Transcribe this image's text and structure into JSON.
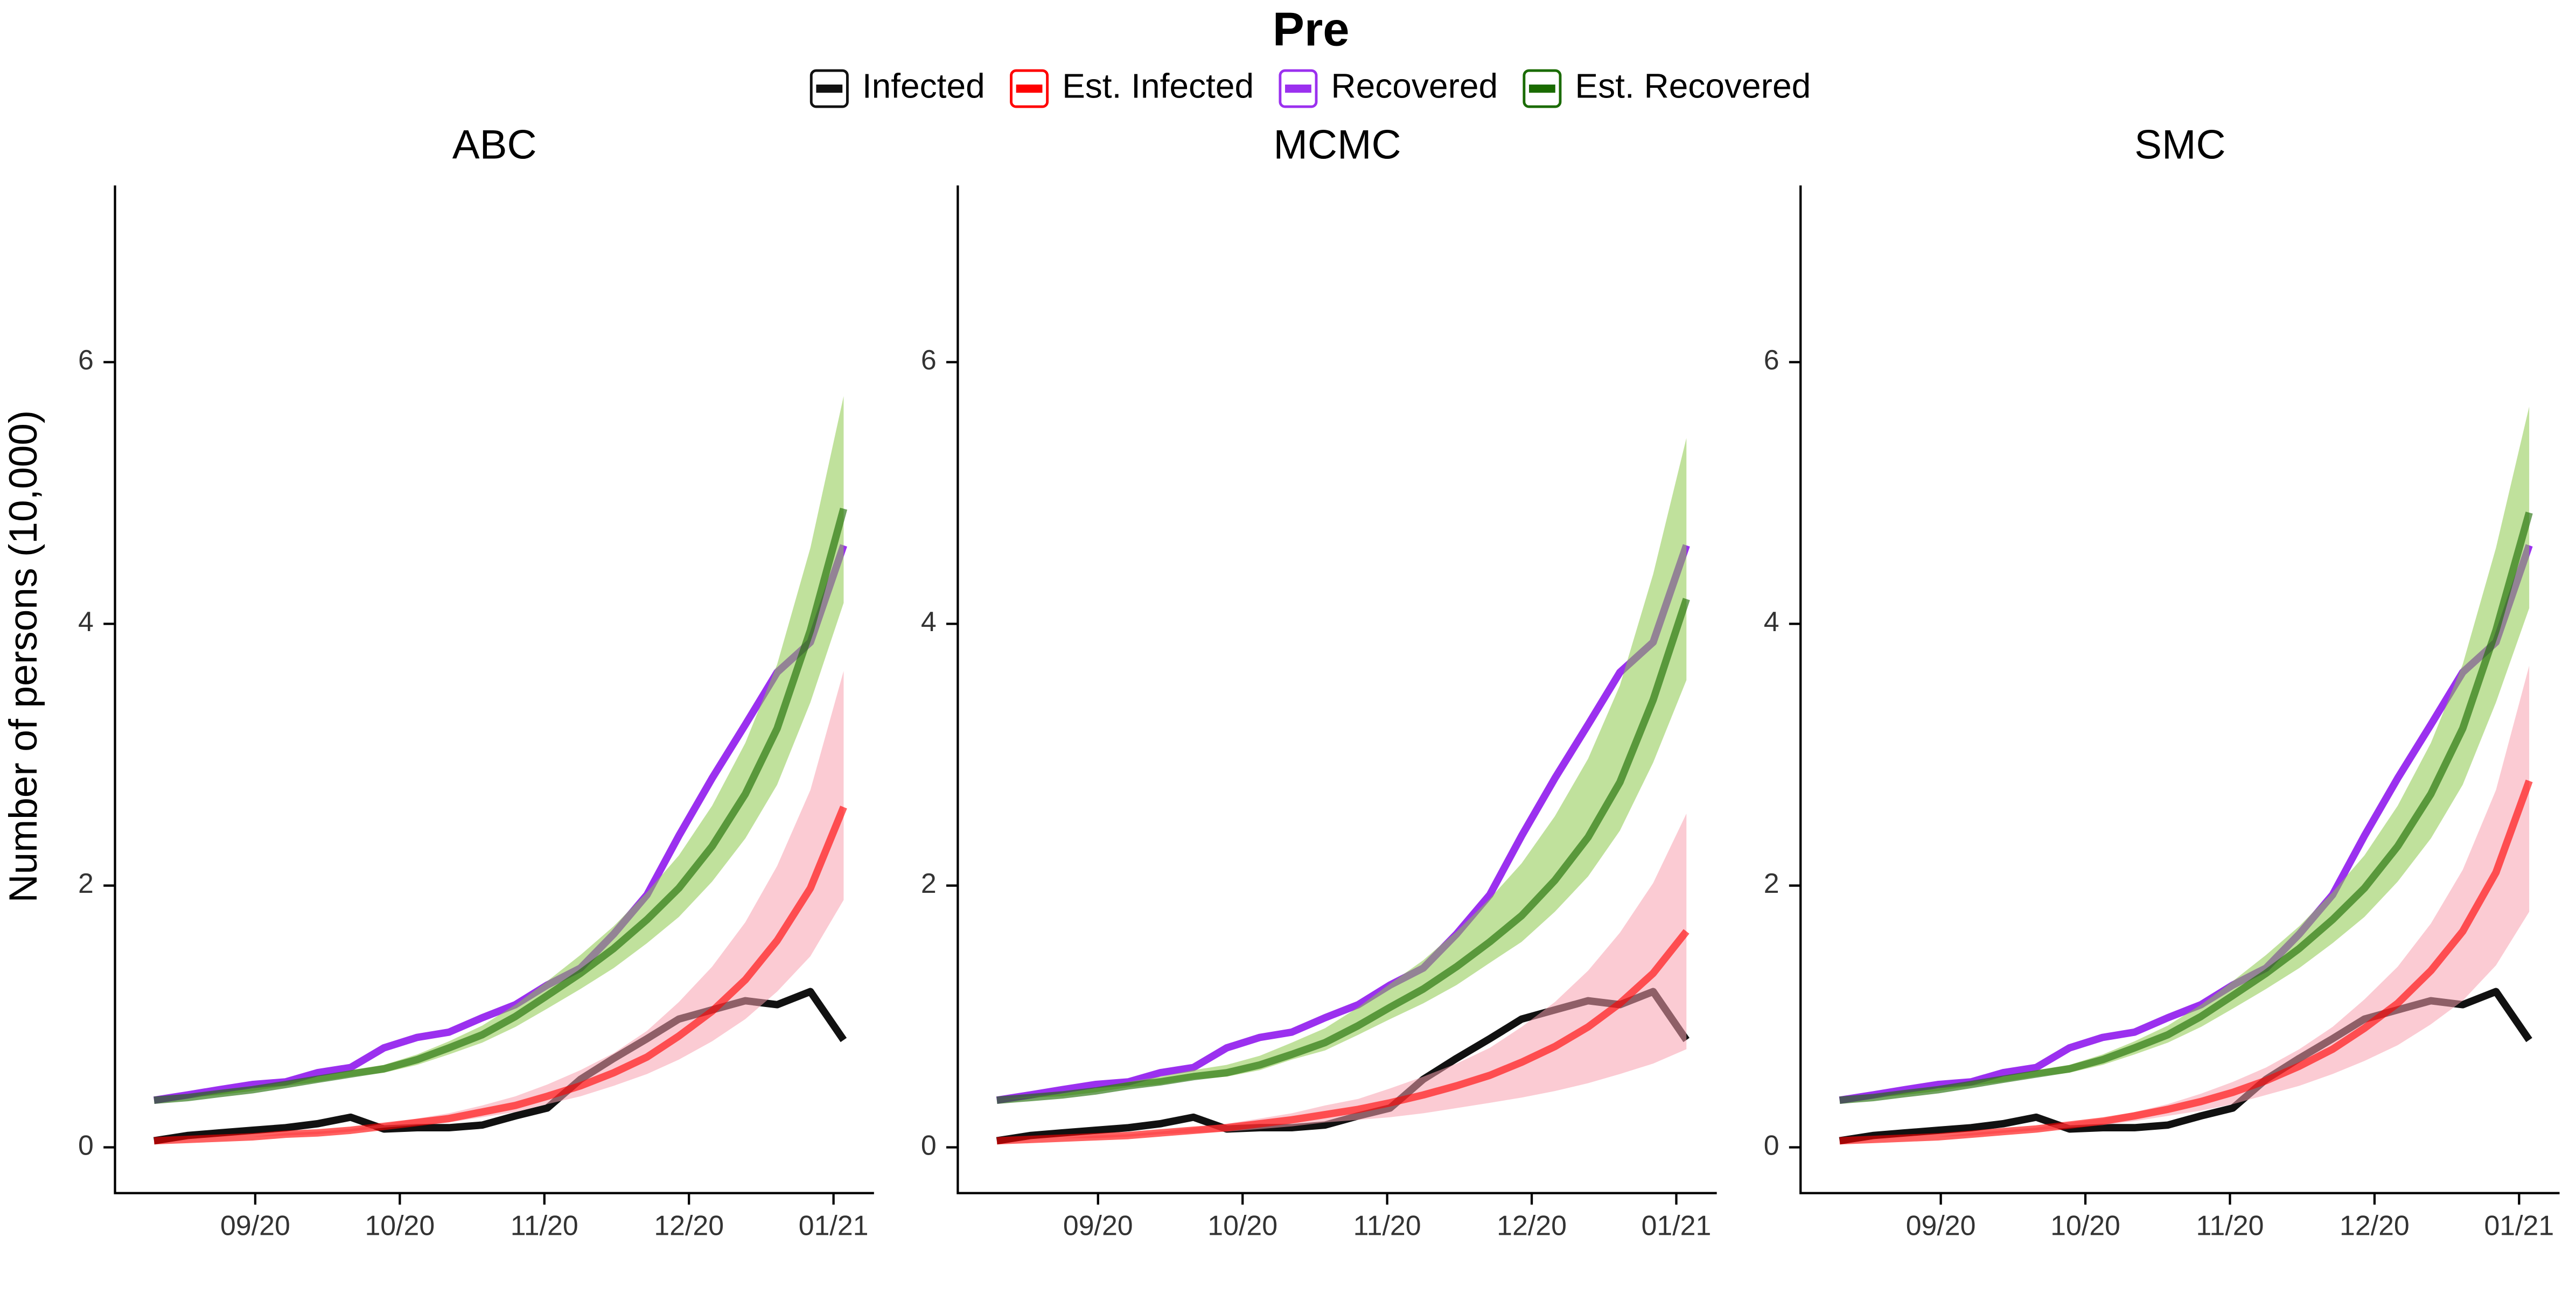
{
  "chart_data": [
    {
      "type": "line",
      "title": "Pre",
      "y_label": "Number of persons (10,000)",
      "subtitle": "ABC",
      "x": [
        -0.7,
        -0.47,
        -0.25,
        -0.02,
        0.21,
        0.43,
        0.66,
        0.89,
        1.12,
        1.34,
        1.57,
        1.8,
        2.02,
        2.25,
        2.48,
        2.71,
        2.93,
        3.16,
        3.39,
        3.61,
        3.84,
        4.07
      ],
      "xlim": [
        -0.97,
        4.28
      ],
      "xticks": [
        {
          "value": 0,
          "label": "09/20"
        },
        {
          "value": 1,
          "label": "10/20"
        },
        {
          "value": 2,
          "label": "11/20"
        },
        {
          "value": 3,
          "label": "12/20"
        },
        {
          "value": 4,
          "label": "01/21"
        }
      ],
      "ylim": [
        -0.35,
        7.35
      ],
      "yticks": [
        0,
        2,
        4,
        6
      ],
      "series": [
        {
          "name": "Infected",
          "color": "#111111",
          "values": [
            0.05,
            0.09,
            0.11,
            0.13,
            0.15,
            0.18,
            0.23,
            0.14,
            0.15,
            0.15,
            0.17,
            0.24,
            0.3,
            0.52,
            0.68,
            0.83,
            0.98,
            1.05,
            1.12,
            1.09,
            1.19,
            0.82
          ]
        },
        {
          "name": "Est. Infected",
          "color": "#ff0000",
          "band_color": "#f7a1ae",
          "values": [
            0.05,
            0.06,
            0.07,
            0.08,
            0.1,
            0.11,
            0.13,
            0.16,
            0.19,
            0.22,
            0.27,
            0.32,
            0.39,
            0.47,
            0.57,
            0.69,
            0.85,
            1.04,
            1.28,
            1.58,
            1.98,
            2.6
          ],
          "lower": [
            0.05,
            0.06,
            0.07,
            0.08,
            0.09,
            0.1,
            0.12,
            0.15,
            0.17,
            0.19,
            0.23,
            0.27,
            0.33,
            0.39,
            0.47,
            0.56,
            0.67,
            0.81,
            0.98,
            1.19,
            1.46,
            1.89
          ],
          "upper": [
            0.05,
            0.06,
            0.07,
            0.08,
            0.11,
            0.12,
            0.14,
            0.18,
            0.22,
            0.26,
            0.32,
            0.39,
            0.48,
            0.59,
            0.72,
            0.89,
            1.11,
            1.38,
            1.72,
            2.15,
            2.73,
            3.64
          ]
        },
        {
          "name": "Recovered",
          "color": "#9b30ef",
          "values": [
            0.36,
            0.4,
            0.44,
            0.48,
            0.5,
            0.57,
            0.61,
            0.76,
            0.84,
            0.88,
            0.99,
            1.09,
            1.24,
            1.37,
            1.63,
            1.93,
            2.38,
            2.82,
            3.23,
            3.63,
            3.86,
            4.6
          ]
        },
        {
          "name": "Est. Recovered",
          "color": "#1a6b00",
          "band_color": "#8cc84b",
          "values": [
            0.36,
            0.38,
            0.41,
            0.44,
            0.48,
            0.52,
            0.56,
            0.6,
            0.67,
            0.76,
            0.86,
            1.0,
            1.16,
            1.33,
            1.52,
            1.74,
            1.98,
            2.3,
            2.7,
            3.2,
            3.95,
            4.88
          ],
          "lower": [
            0.36,
            0.38,
            0.4,
            0.43,
            0.47,
            0.5,
            0.54,
            0.57,
            0.63,
            0.71,
            0.8,
            0.92,
            1.06,
            1.21,
            1.37,
            1.56,
            1.76,
            2.03,
            2.36,
            2.77,
            3.4,
            4.16
          ],
          "upper": [
            0.36,
            0.38,
            0.42,
            0.45,
            0.5,
            0.54,
            0.59,
            0.63,
            0.71,
            0.81,
            0.93,
            1.09,
            1.27,
            1.47,
            1.69,
            1.95,
            2.23,
            2.61,
            3.09,
            3.69,
            4.58,
            5.74
          ]
        }
      ]
    },
    {
      "type": "line",
      "subtitle": "MCMC",
      "x": [
        -0.7,
        -0.47,
        -0.25,
        -0.02,
        0.21,
        0.43,
        0.66,
        0.89,
        1.12,
        1.34,
        1.57,
        1.8,
        2.02,
        2.25,
        2.48,
        2.71,
        2.93,
        3.16,
        3.39,
        3.61,
        3.84,
        4.07
      ],
      "xlim": [
        -0.97,
        4.28
      ],
      "xticks": [
        {
          "value": 0,
          "label": "09/20"
        },
        {
          "value": 1,
          "label": "10/20"
        },
        {
          "value": 2,
          "label": "11/20"
        },
        {
          "value": 3,
          "label": "12/20"
        },
        {
          "value": 4,
          "label": "01/21"
        }
      ],
      "ylim": [
        -0.35,
        7.35
      ],
      "yticks": [
        0,
        2,
        4,
        6
      ],
      "series": [
        {
          "color": "#111111",
          "values": [
            0.05,
            0.09,
            0.11,
            0.13,
            0.15,
            0.18,
            0.23,
            0.14,
            0.15,
            0.15,
            0.17,
            0.24,
            0.3,
            0.52,
            0.68,
            0.83,
            0.98,
            1.05,
            1.12,
            1.09,
            1.19,
            0.82
          ]
        },
        {
          "color": "#ff0000",
          "band_color": "#f7a1ae",
          "values": [
            0.05,
            0.06,
            0.07,
            0.08,
            0.09,
            0.11,
            0.13,
            0.15,
            0.18,
            0.21,
            0.25,
            0.29,
            0.34,
            0.4,
            0.47,
            0.55,
            0.65,
            0.77,
            0.92,
            1.1,
            1.33,
            1.65
          ],
          "lower": [
            0.05,
            0.06,
            0.07,
            0.07,
            0.08,
            0.1,
            0.11,
            0.12,
            0.14,
            0.16,
            0.19,
            0.21,
            0.23,
            0.26,
            0.3,
            0.34,
            0.38,
            0.43,
            0.49,
            0.56,
            0.64,
            0.75
          ],
          "upper": [
            0.05,
            0.06,
            0.07,
            0.09,
            0.1,
            0.12,
            0.15,
            0.18,
            0.22,
            0.26,
            0.32,
            0.37,
            0.45,
            0.54,
            0.64,
            0.76,
            0.92,
            1.11,
            1.35,
            1.64,
            2.02,
            2.55
          ]
        },
        {
          "color": "#9b30ef",
          "values": [
            0.36,
            0.4,
            0.44,
            0.48,
            0.5,
            0.57,
            0.61,
            0.76,
            0.84,
            0.88,
            0.99,
            1.09,
            1.24,
            1.37,
            1.63,
            1.93,
            2.38,
            2.82,
            3.23,
            3.63,
            3.86,
            4.6
          ]
        },
        {
          "color": "#1a6b00",
          "band_color": "#8cc84b",
          "values": [
            0.36,
            0.38,
            0.4,
            0.43,
            0.47,
            0.5,
            0.54,
            0.57,
            0.63,
            0.71,
            0.8,
            0.93,
            1.07,
            1.21,
            1.38,
            1.57,
            1.77,
            2.04,
            2.37,
            2.79,
            3.42,
            4.19
          ],
          "lower": [
            0.36,
            0.38,
            0.39,
            0.42,
            0.46,
            0.48,
            0.52,
            0.54,
            0.59,
            0.67,
            0.74,
            0.86,
            0.98,
            1.1,
            1.24,
            1.41,
            1.57,
            1.8,
            2.07,
            2.42,
            2.94,
            3.57
          ],
          "upper": [
            0.36,
            0.39,
            0.41,
            0.45,
            0.5,
            0.54,
            0.59,
            0.63,
            0.7,
            0.8,
            0.91,
            1.07,
            1.25,
            1.43,
            1.65,
            1.9,
            2.17,
            2.53,
            2.97,
            3.53,
            4.38,
            5.42
          ]
        }
      ]
    },
    {
      "type": "line",
      "subtitle": "SMC",
      "x": [
        -0.7,
        -0.47,
        -0.25,
        -0.02,
        0.21,
        0.43,
        0.66,
        0.89,
        1.12,
        1.34,
        1.57,
        1.8,
        2.02,
        2.25,
        2.48,
        2.71,
        2.93,
        3.16,
        3.39,
        3.61,
        3.84,
        4.07
      ],
      "xlim": [
        -0.97,
        4.28
      ],
      "xticks": [
        {
          "value": 0,
          "label": "09/20"
        },
        {
          "value": 1,
          "label": "10/20"
        },
        {
          "value": 2,
          "label": "11/20"
        },
        {
          "value": 3,
          "label": "12/20"
        },
        {
          "value": 4,
          "label": "01/21"
        }
      ],
      "ylim": [
        -0.35,
        7.35
      ],
      "yticks": [
        0,
        2,
        4,
        6
      ],
      "series": [
        {
          "color": "#111111",
          "values": [
            0.05,
            0.09,
            0.11,
            0.13,
            0.15,
            0.18,
            0.23,
            0.14,
            0.15,
            0.15,
            0.17,
            0.24,
            0.3,
            0.52,
            0.68,
            0.83,
            0.98,
            1.05,
            1.12,
            1.09,
            1.19,
            0.82
          ]
        },
        {
          "color": "#ff0000",
          "band_color": "#f7a1ae",
          "values": [
            0.05,
            0.06,
            0.07,
            0.08,
            0.1,
            0.12,
            0.14,
            0.17,
            0.2,
            0.24,
            0.29,
            0.35,
            0.42,
            0.51,
            0.62,
            0.75,
            0.91,
            1.1,
            1.35,
            1.65,
            2.1,
            2.8
          ],
          "lower": [
            0.05,
            0.06,
            0.07,
            0.08,
            0.09,
            0.11,
            0.13,
            0.15,
            0.17,
            0.2,
            0.24,
            0.28,
            0.33,
            0.4,
            0.47,
            0.56,
            0.66,
            0.78,
            0.94,
            1.12,
            1.39,
            1.8
          ],
          "upper": [
            0.05,
            0.06,
            0.07,
            0.08,
            0.11,
            0.13,
            0.15,
            0.19,
            0.22,
            0.27,
            0.33,
            0.41,
            0.5,
            0.61,
            0.75,
            0.92,
            1.13,
            1.38,
            1.71,
            2.12,
            2.73,
            3.68
          ]
        },
        {
          "color": "#9b30ef",
          "values": [
            0.36,
            0.4,
            0.44,
            0.48,
            0.5,
            0.57,
            0.61,
            0.76,
            0.84,
            0.88,
            0.99,
            1.09,
            1.24,
            1.37,
            1.63,
            1.93,
            2.38,
            2.82,
            3.23,
            3.63,
            3.86,
            4.6
          ]
        },
        {
          "color": "#1a6b00",
          "band_color": "#8cc84b",
          "values": [
            0.36,
            0.38,
            0.41,
            0.44,
            0.48,
            0.52,
            0.56,
            0.6,
            0.67,
            0.76,
            0.86,
            1.0,
            1.16,
            1.33,
            1.52,
            1.74,
            1.98,
            2.3,
            2.7,
            3.2,
            3.95,
            4.85
          ],
          "lower": [
            0.36,
            0.38,
            0.4,
            0.43,
            0.47,
            0.5,
            0.54,
            0.57,
            0.63,
            0.71,
            0.8,
            0.92,
            1.06,
            1.21,
            1.37,
            1.56,
            1.76,
            2.03,
            2.36,
            2.77,
            3.4,
            4.12
          ],
          "upper": [
            0.36,
            0.38,
            0.42,
            0.45,
            0.5,
            0.54,
            0.59,
            0.63,
            0.71,
            0.81,
            0.93,
            1.09,
            1.27,
            1.47,
            1.69,
            1.95,
            2.23,
            2.61,
            3.09,
            3.69,
            4.58,
            5.66
          ]
        }
      ]
    }
  ]
}
